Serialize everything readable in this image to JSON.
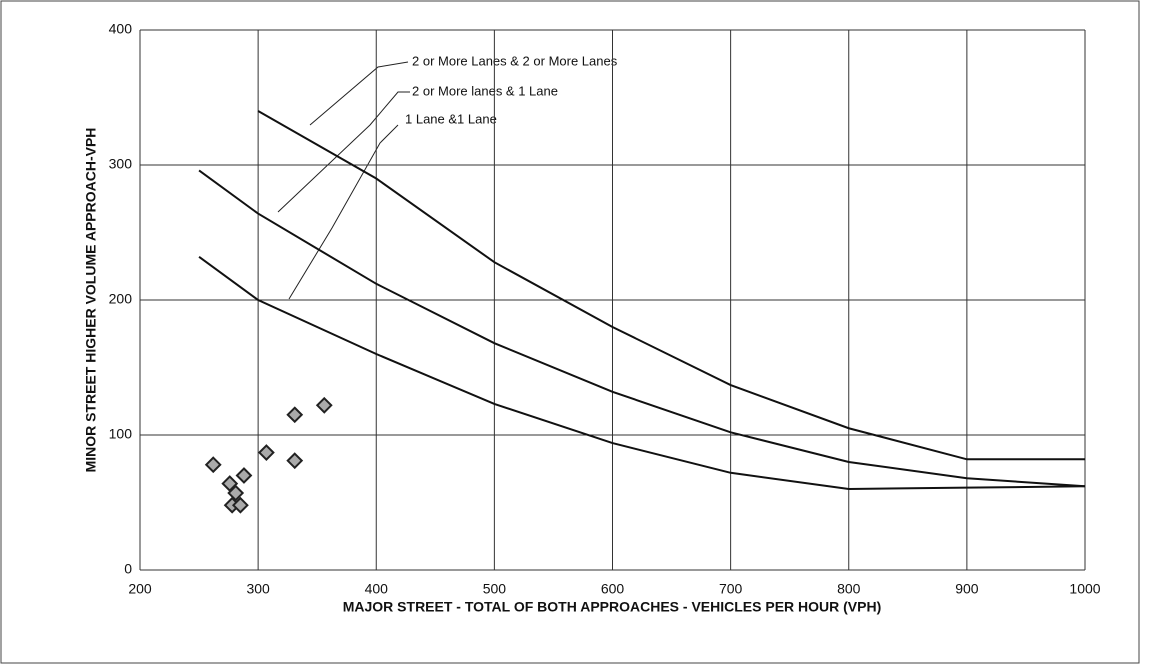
{
  "chart_data": {
    "type": "line",
    "xlabel": "MAJOR STREET - TOTAL OF BOTH APPROACHES - VEHICLES PER HOUR (VPH)",
    "ylabel": "MINOR STREET HIGHER VOLUME APPROACH-VPH",
    "xlim": [
      200,
      1000
    ],
    "ylim": [
      0,
      400
    ],
    "xticks": [
      200,
      300,
      400,
      500,
      600,
      700,
      800,
      900,
      1000
    ],
    "yticks": [
      0,
      100,
      200,
      300,
      400
    ],
    "grid": true,
    "series": [
      {
        "name": "2 or More Lanes & 2 or More Lanes",
        "color": "#111111",
        "x": [
          300,
          400,
          500,
          600,
          700,
          800,
          900,
          1000
        ],
        "values": [
          340,
          290,
          228,
          180,
          137,
          105,
          82,
          82
        ]
      },
      {
        "name": "2 or More lanes & 1 Lane",
        "color": "#111111",
        "x": [
          250,
          300,
          400,
          500,
          600,
          700,
          800,
          900,
          1000
        ],
        "values": [
          296,
          264,
          212,
          168,
          132,
          102,
          80,
          68,
          62
        ]
      },
      {
        "name": "1 Lane &1 Lane",
        "color": "#111111",
        "x": [
          250,
          300,
          400,
          500,
          600,
          700,
          800,
          900,
          1000
        ],
        "values": [
          232,
          200,
          160,
          123,
          94,
          72,
          60,
          61,
          62
        ]
      }
    ],
    "points": {
      "color": "#222222",
      "x": [
        276,
        281,
        278,
        285,
        262,
        288,
        307,
        331,
        331,
        356
      ],
      "values": [
        64,
        57,
        48,
        48,
        78,
        70,
        87,
        115,
        81,
        122
      ]
    }
  }
}
